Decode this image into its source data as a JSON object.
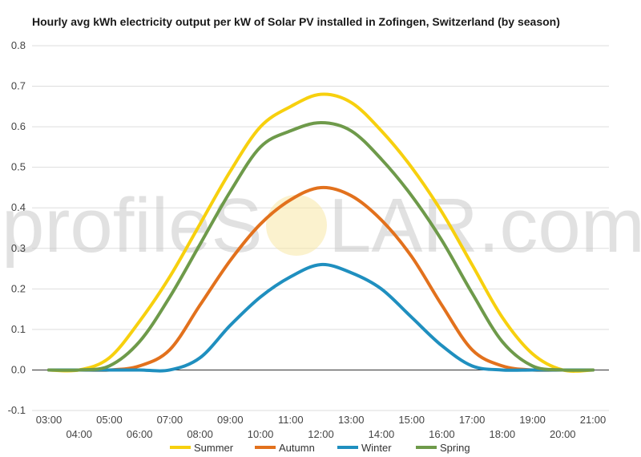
{
  "watermark": {
    "left": "profileS",
    "right": "LAR.com"
  },
  "chart_data": {
    "type": "line",
    "title": "Hourly avg kWh electricity output per kW of Solar PV installed in Zofingen, Switzerland (by season)",
    "x_ticks": [
      "03:00",
      "04:00",
      "05:00",
      "06:00",
      "07:00",
      "08:00",
      "09:00",
      "10:00",
      "11:00",
      "12:00",
      "13:00",
      "14:00",
      "15:00",
      "16:00",
      "17:00",
      "18:00",
      "19:00",
      "20:00",
      "21:00"
    ],
    "ylim": [
      -0.1,
      0.8
    ],
    "y_ticks": [
      "-0.1",
      "0.0",
      "0.1",
      "0.2",
      "0.3",
      "0.4",
      "0.5",
      "0.6",
      "0.7",
      "0.8"
    ],
    "grid": true,
    "legend_position": "bottom",
    "series": [
      {
        "name": "Summer",
        "color": "#f7d00e",
        "values": [
          0.0,
          0.0,
          0.03,
          0.12,
          0.23,
          0.36,
          0.49,
          0.6,
          0.65,
          0.68,
          0.66,
          0.59,
          0.5,
          0.39,
          0.26,
          0.13,
          0.04,
          0.0,
          0.0
        ]
      },
      {
        "name": "Autumn",
        "color": "#e2711d",
        "values": [
          0.0,
          0.0,
          0.0,
          0.01,
          0.05,
          0.16,
          0.27,
          0.36,
          0.42,
          0.45,
          0.43,
          0.37,
          0.28,
          0.16,
          0.05,
          0.01,
          0.0,
          0.0,
          0.0
        ]
      },
      {
        "name": "Winter",
        "color": "#1f8fbf",
        "values": [
          0.0,
          0.0,
          0.0,
          0.0,
          0.0,
          0.03,
          0.11,
          0.18,
          0.23,
          0.26,
          0.24,
          0.2,
          0.13,
          0.06,
          0.01,
          0.0,
          0.0,
          0.0,
          0.0
        ]
      },
      {
        "name": "Spring",
        "color": "#6e9a4a",
        "values": [
          0.0,
          0.0,
          0.01,
          0.07,
          0.18,
          0.31,
          0.44,
          0.55,
          0.59,
          0.61,
          0.59,
          0.52,
          0.43,
          0.32,
          0.19,
          0.07,
          0.01,
          0.0,
          0.0
        ]
      }
    ]
  }
}
